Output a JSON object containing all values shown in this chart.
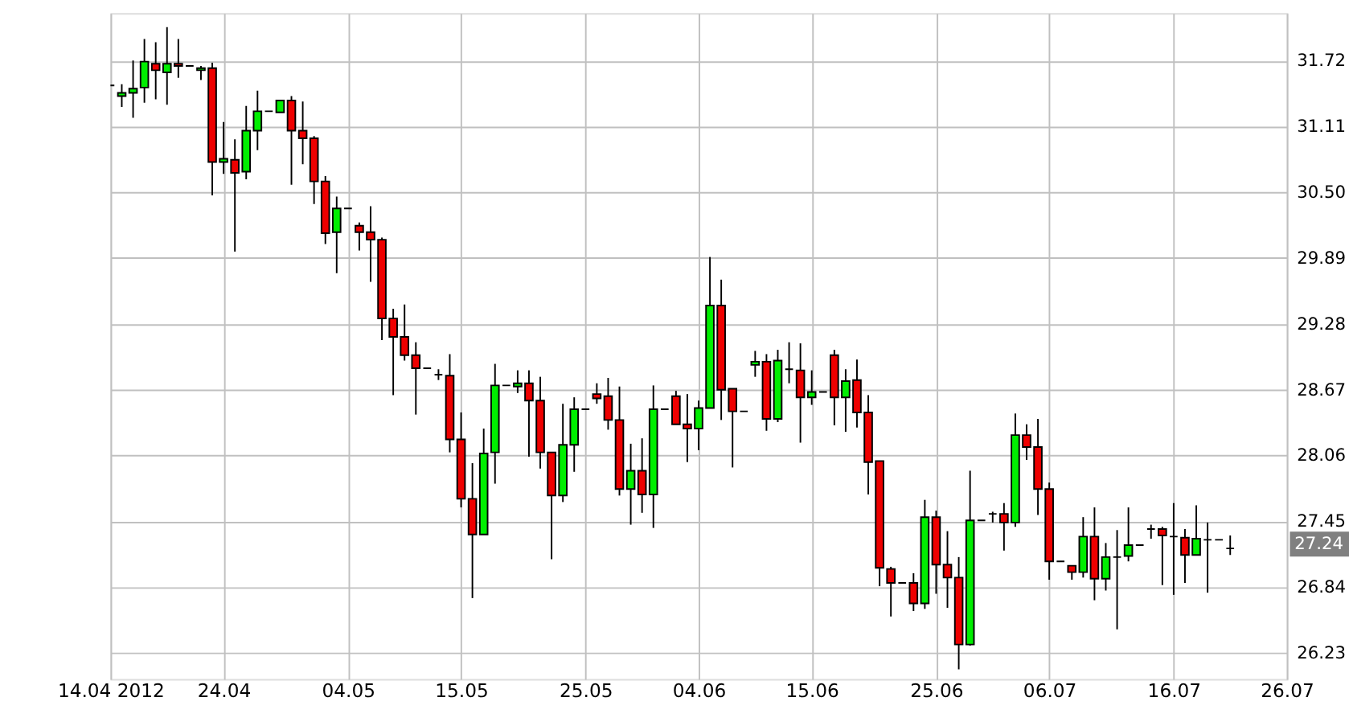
{
  "chart_data": {
    "type": "candlestick",
    "categories": [
      "14.04 2012",
      null,
      null,
      null,
      null,
      null,
      null,
      null,
      null,
      null,
      "24.04",
      null,
      null,
      null,
      null,
      null,
      null,
      null,
      null,
      null,
      null,
      "04.05",
      null,
      null,
      null,
      null,
      null,
      null,
      null,
      null,
      null,
      "15.05",
      null,
      null,
      null,
      null,
      null,
      null,
      null,
      null,
      null,
      null,
      "25.05",
      null,
      null,
      null,
      null,
      null,
      null,
      null,
      null,
      null,
      "04.06",
      null,
      null,
      null,
      null,
      null,
      null,
      null,
      null,
      null,
      "15.06",
      null,
      null,
      null,
      null,
      null,
      null,
      null,
      null,
      null,
      null,
      "25.06",
      null,
      null,
      null,
      null,
      null,
      null,
      null,
      null,
      null,
      "06.07",
      null,
      null,
      null,
      null,
      null,
      null,
      null,
      null,
      null,
      null,
      "16.07",
      null,
      null,
      null,
      null,
      null,
      null,
      null,
      null,
      null,
      "26.07"
    ],
    "ohlc": [
      [
        31.49,
        31.49,
        31.49,
        31.49
      ],
      [
        31.39,
        31.5,
        31.29,
        31.42
      ],
      [
        31.42,
        31.72,
        31.19,
        31.46
      ],
      [
        31.47,
        31.92,
        31.33,
        31.71
      ],
      [
        31.69,
        31.89,
        31.36,
        31.63
      ],
      [
        31.61,
        32.03,
        31.31,
        31.69
      ],
      [
        31.69,
        31.92,
        31.56,
        31.67
      ],
      [
        31.67,
        31.67,
        31.67,
        31.67
      ],
      [
        31.63,
        31.67,
        31.54,
        31.65
      ],
      [
        31.65,
        31.7,
        30.47,
        30.78
      ],
      [
        30.78,
        31.15,
        30.67,
        30.81
      ],
      [
        30.8,
        30.99,
        29.95,
        30.68
      ],
      [
        30.69,
        31.3,
        30.62,
        31.07
      ],
      [
        31.07,
        31.44,
        30.89,
        31.25
      ],
      [
        31.25,
        31.25,
        31.25,
        31.25
      ],
      [
        31.24,
        31.35,
        31.24,
        31.35
      ],
      [
        31.35,
        31.39,
        30.57,
        31.07
      ],
      [
        31.07,
        31.34,
        30.76,
        31.0
      ],
      [
        31.0,
        31.02,
        30.39,
        30.6
      ],
      [
        30.6,
        30.65,
        30.02,
        30.12
      ],
      [
        30.13,
        30.46,
        29.75,
        30.35
      ],
      [
        30.35,
        30.35,
        30.35,
        30.35
      ],
      [
        30.19,
        30.22,
        29.96,
        30.13
      ],
      [
        30.13,
        30.37,
        29.67,
        30.06
      ],
      [
        30.06,
        30.08,
        29.13,
        29.33
      ],
      [
        29.33,
        29.42,
        28.62,
        29.16
      ],
      [
        29.16,
        29.46,
        28.94,
        28.99
      ],
      [
        28.99,
        29.11,
        28.44,
        28.87
      ],
      [
        28.87,
        28.87,
        28.87,
        28.87
      ],
      [
        28.81,
        28.86,
        28.76,
        28.81
      ],
      [
        28.8,
        29.0,
        28.09,
        28.21
      ],
      [
        28.21,
        28.46,
        27.58,
        27.66
      ],
      [
        27.66,
        27.99,
        26.74,
        27.33
      ],
      [
        27.33,
        28.31,
        27.33,
        28.08
      ],
      [
        28.09,
        28.91,
        27.8,
        28.71
      ],
      [
        28.71,
        28.71,
        28.71,
        28.71
      ],
      [
        28.7,
        28.85,
        28.64,
        28.73
      ],
      [
        28.73,
        28.85,
        28.05,
        28.57
      ],
      [
        28.57,
        28.79,
        27.94,
        28.09
      ],
      [
        28.09,
        28.09,
        27.1,
        27.69
      ],
      [
        27.69,
        28.54,
        27.63,
        28.16
      ],
      [
        28.16,
        28.6,
        27.91,
        28.49
      ],
      [
        28.49,
        28.49,
        28.49,
        28.49
      ],
      [
        28.63,
        28.73,
        28.54,
        28.59
      ],
      [
        28.61,
        28.78,
        28.3,
        28.39
      ],
      [
        28.39,
        28.7,
        27.69,
        27.75
      ],
      [
        27.75,
        28.17,
        27.42,
        27.92
      ],
      [
        27.92,
        28.22,
        27.53,
        27.7
      ],
      [
        27.7,
        28.71,
        27.39,
        28.49
      ],
      [
        28.49,
        28.49,
        28.49,
        28.49
      ],
      [
        28.61,
        28.66,
        28.35,
        28.35
      ],
      [
        28.35,
        28.63,
        28.0,
        28.31
      ],
      [
        28.31,
        28.57,
        28.11,
        28.5
      ],
      [
        28.5,
        29.9,
        28.5,
        29.45
      ],
      [
        29.45,
        29.69,
        28.39,
        28.67
      ],
      [
        28.68,
        28.68,
        27.95,
        28.47
      ],
      [
        28.47,
        28.47,
        28.47,
        28.47
      ],
      [
        28.9,
        29.03,
        28.79,
        28.93
      ],
      [
        28.93,
        29.0,
        28.29,
        28.4
      ],
      [
        28.4,
        29.04,
        28.37,
        28.94
      ],
      [
        28.86,
        29.11,
        28.73,
        28.86
      ],
      [
        28.85,
        29.1,
        28.18,
        28.6
      ],
      [
        28.6,
        28.85,
        28.53,
        28.65
      ],
      [
        28.65,
        28.65,
        28.65,
        28.65
      ],
      [
        28.99,
        29.04,
        28.34,
        28.6
      ],
      [
        28.6,
        28.86,
        28.28,
        28.75
      ],
      [
        28.76,
        28.95,
        28.32,
        28.46
      ],
      [
        28.46,
        28.62,
        27.7,
        28.0
      ],
      [
        28.01,
        28.01,
        26.85,
        27.02
      ],
      [
        27.01,
        27.03,
        26.57,
        26.88
      ],
      [
        26.88,
        26.88,
        26.88,
        26.88
      ],
      [
        26.88,
        26.97,
        26.62,
        26.69
      ],
      [
        26.69,
        27.65,
        26.64,
        27.49
      ],
      [
        27.49,
        27.55,
        26.78,
        27.05
      ],
      [
        27.05,
        27.36,
        26.65,
        26.93
      ],
      [
        26.93,
        27.12,
        26.08,
        26.31
      ],
      [
        26.31,
        27.92,
        26.3,
        27.46
      ],
      [
        27.46,
        27.46,
        27.46,
        27.46
      ],
      [
        27.52,
        27.54,
        27.44,
        27.52
      ],
      [
        27.52,
        27.62,
        27.18,
        27.44
      ],
      [
        27.44,
        28.45,
        27.4,
        28.25
      ],
      [
        28.25,
        28.35,
        28.02,
        28.14
      ],
      [
        28.14,
        28.4,
        27.51,
        27.75
      ],
      [
        27.75,
        27.81,
        26.91,
        27.08
      ],
      [
        27.08,
        27.08,
        27.08,
        27.08
      ],
      [
        27.04,
        27.04,
        26.91,
        26.98
      ],
      [
        26.98,
        27.49,
        26.93,
        27.31
      ],
      [
        27.31,
        27.58,
        26.72,
        26.92
      ],
      [
        26.92,
        27.25,
        26.81,
        27.12
      ],
      [
        27.12,
        27.37,
        26.45,
        27.12
      ],
      [
        27.13,
        27.58,
        27.08,
        27.23
      ],
      [
        27.23,
        27.23,
        27.23,
        27.23
      ],
      [
        27.38,
        27.42,
        27.29,
        27.38
      ],
      [
        27.38,
        27.4,
        26.86,
        27.32
      ],
      [
        27.31,
        27.62,
        26.77,
        27.31
      ],
      [
        27.3,
        27.38,
        26.88,
        27.14
      ],
      [
        27.14,
        27.6,
        27.14,
        27.29
      ],
      [
        27.28,
        27.44,
        26.79,
        27.28
      ],
      [
        27.28,
        27.28,
        27.28,
        27.28
      ],
      [
        27.2,
        27.32,
        27.14,
        27.2
      ],
      null,
      null,
      null,
      null,
      null
    ],
    "colors": [
      "#000000",
      "#00ee00",
      "#00ee00",
      "#00ee00",
      "#ee0000",
      "#00ee00",
      "#ee0000",
      "#000000",
      "#00ee00",
      "#ee0000",
      "#00ee00",
      "#ee0000",
      "#00ee00",
      "#00ee00",
      "#000000",
      "#00ee00",
      "#ee0000",
      "#ee0000",
      "#ee0000",
      "#ee0000",
      "#00ee00",
      "#000000",
      "#ee0000",
      "#ee0000",
      "#ee0000",
      "#ee0000",
      "#ee0000",
      "#ee0000",
      "#000000",
      "#000000",
      "#ee0000",
      "#ee0000",
      "#ee0000",
      "#00ee00",
      "#00ee00",
      "#000000",
      "#00ee00",
      "#ee0000",
      "#ee0000",
      "#ee0000",
      "#00ee00",
      "#00ee00",
      "#000000",
      "#ee0000",
      "#ee0000",
      "#ee0000",
      "#00ee00",
      "#ee0000",
      "#00ee00",
      "#000000",
      "#ee0000",
      "#ee0000",
      "#00ee00",
      "#00ee00",
      "#ee0000",
      "#ee0000",
      "#000000",
      "#00ee00",
      "#ee0000",
      "#00ee00",
      "#000000",
      "#ee0000",
      "#00ee00",
      "#000000",
      "#ee0000",
      "#00ee00",
      "#ee0000",
      "#ee0000",
      "#ee0000",
      "#ee0000",
      "#000000",
      "#ee0000",
      "#00ee00",
      "#ee0000",
      "#ee0000",
      "#ee0000",
      "#00ee00",
      "#000000",
      "#000000",
      "#ee0000",
      "#00ee00",
      "#ee0000",
      "#ee0000",
      "#ee0000",
      "#000000",
      "#ee0000",
      "#00ee00",
      "#ee0000",
      "#00ee00",
      "#000000",
      "#00ee00",
      "#000000",
      "#000000",
      "#ee0000",
      "#000000",
      "#ee0000",
      "#00ee00",
      "#000000",
      "#000000",
      "#000000",
      null,
      null,
      null,
      null,
      null
    ],
    "ylim": [
      25.99,
      32.16
    ],
    "yticks": [
      26.23,
      26.84,
      27.45,
      28.06,
      28.67,
      29.28,
      29.89,
      {
        "value": 30.5,
        "label": "30.50"
      },
      31.11,
      31.72
    ],
    "grid": true,
    "annotations": [
      {
        "text": "27.24",
        "y": 27.24
      }
    ]
  }
}
